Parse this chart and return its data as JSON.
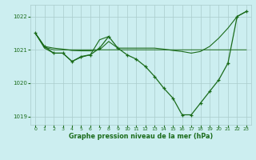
{
  "bg_color": "#cceef0",
  "grid_color": "#aacccc",
  "line_color": "#1a6b1a",
  "text_color": "#1a6b1a",
  "xlabel": "Graphe pression niveau de la mer (hPa)",
  "xlim": [
    -0.5,
    23.5
  ],
  "ylim": [
    1018.75,
    1022.35
  ],
  "yticks": [
    1019,
    1020,
    1021,
    1022
  ],
  "xticks": [
    0,
    1,
    2,
    3,
    4,
    5,
    6,
    7,
    8,
    9,
    10,
    11,
    12,
    13,
    14,
    15,
    16,
    17,
    18,
    19,
    20,
    21,
    22,
    23
  ],
  "y_main": [
    1021.5,
    1021.1,
    1020.9,
    1020.9,
    1020.65,
    1020.8,
    1020.85,
    1021.05,
    1021.4,
    1021.05,
    1020.85,
    1020.72,
    1020.5,
    1020.2,
    1019.85,
    1019.55,
    1019.05,
    1019.05,
    1019.4,
    1019.75,
    1020.1,
    1020.6,
    1022.0,
    1022.15
  ],
  "y_trend": [
    1021.5,
    1021.1,
    1021.05,
    1021.02,
    1020.98,
    1020.97,
    1020.97,
    1021.0,
    1021.25,
    1021.05,
    1021.05,
    1021.05,
    1021.05,
    1021.05,
    1021.02,
    1020.98,
    1020.95,
    1020.9,
    1020.95,
    1021.1,
    1021.35,
    1021.65,
    1022.0,
    1022.15
  ],
  "y_flat": [
    1021.5,
    1021.08,
    1021.0,
    1021.0,
    1021.0,
    1021.0,
    1021.0,
    1021.0,
    1021.0,
    1021.0,
    1021.0,
    1021.0,
    1021.0,
    1021.0,
    1021.0,
    1021.0,
    1021.0,
    1021.0,
    1021.0,
    1021.0,
    1021.0,
    1021.0,
    1021.0,
    1021.0
  ],
  "x_short": [
    0,
    1,
    2,
    3,
    4,
    5,
    6,
    7,
    8
  ],
  "y_short": [
    1021.5,
    1021.05,
    1020.9,
    1020.9,
    1020.65,
    1020.78,
    1020.85,
    1021.3,
    1021.4
  ]
}
